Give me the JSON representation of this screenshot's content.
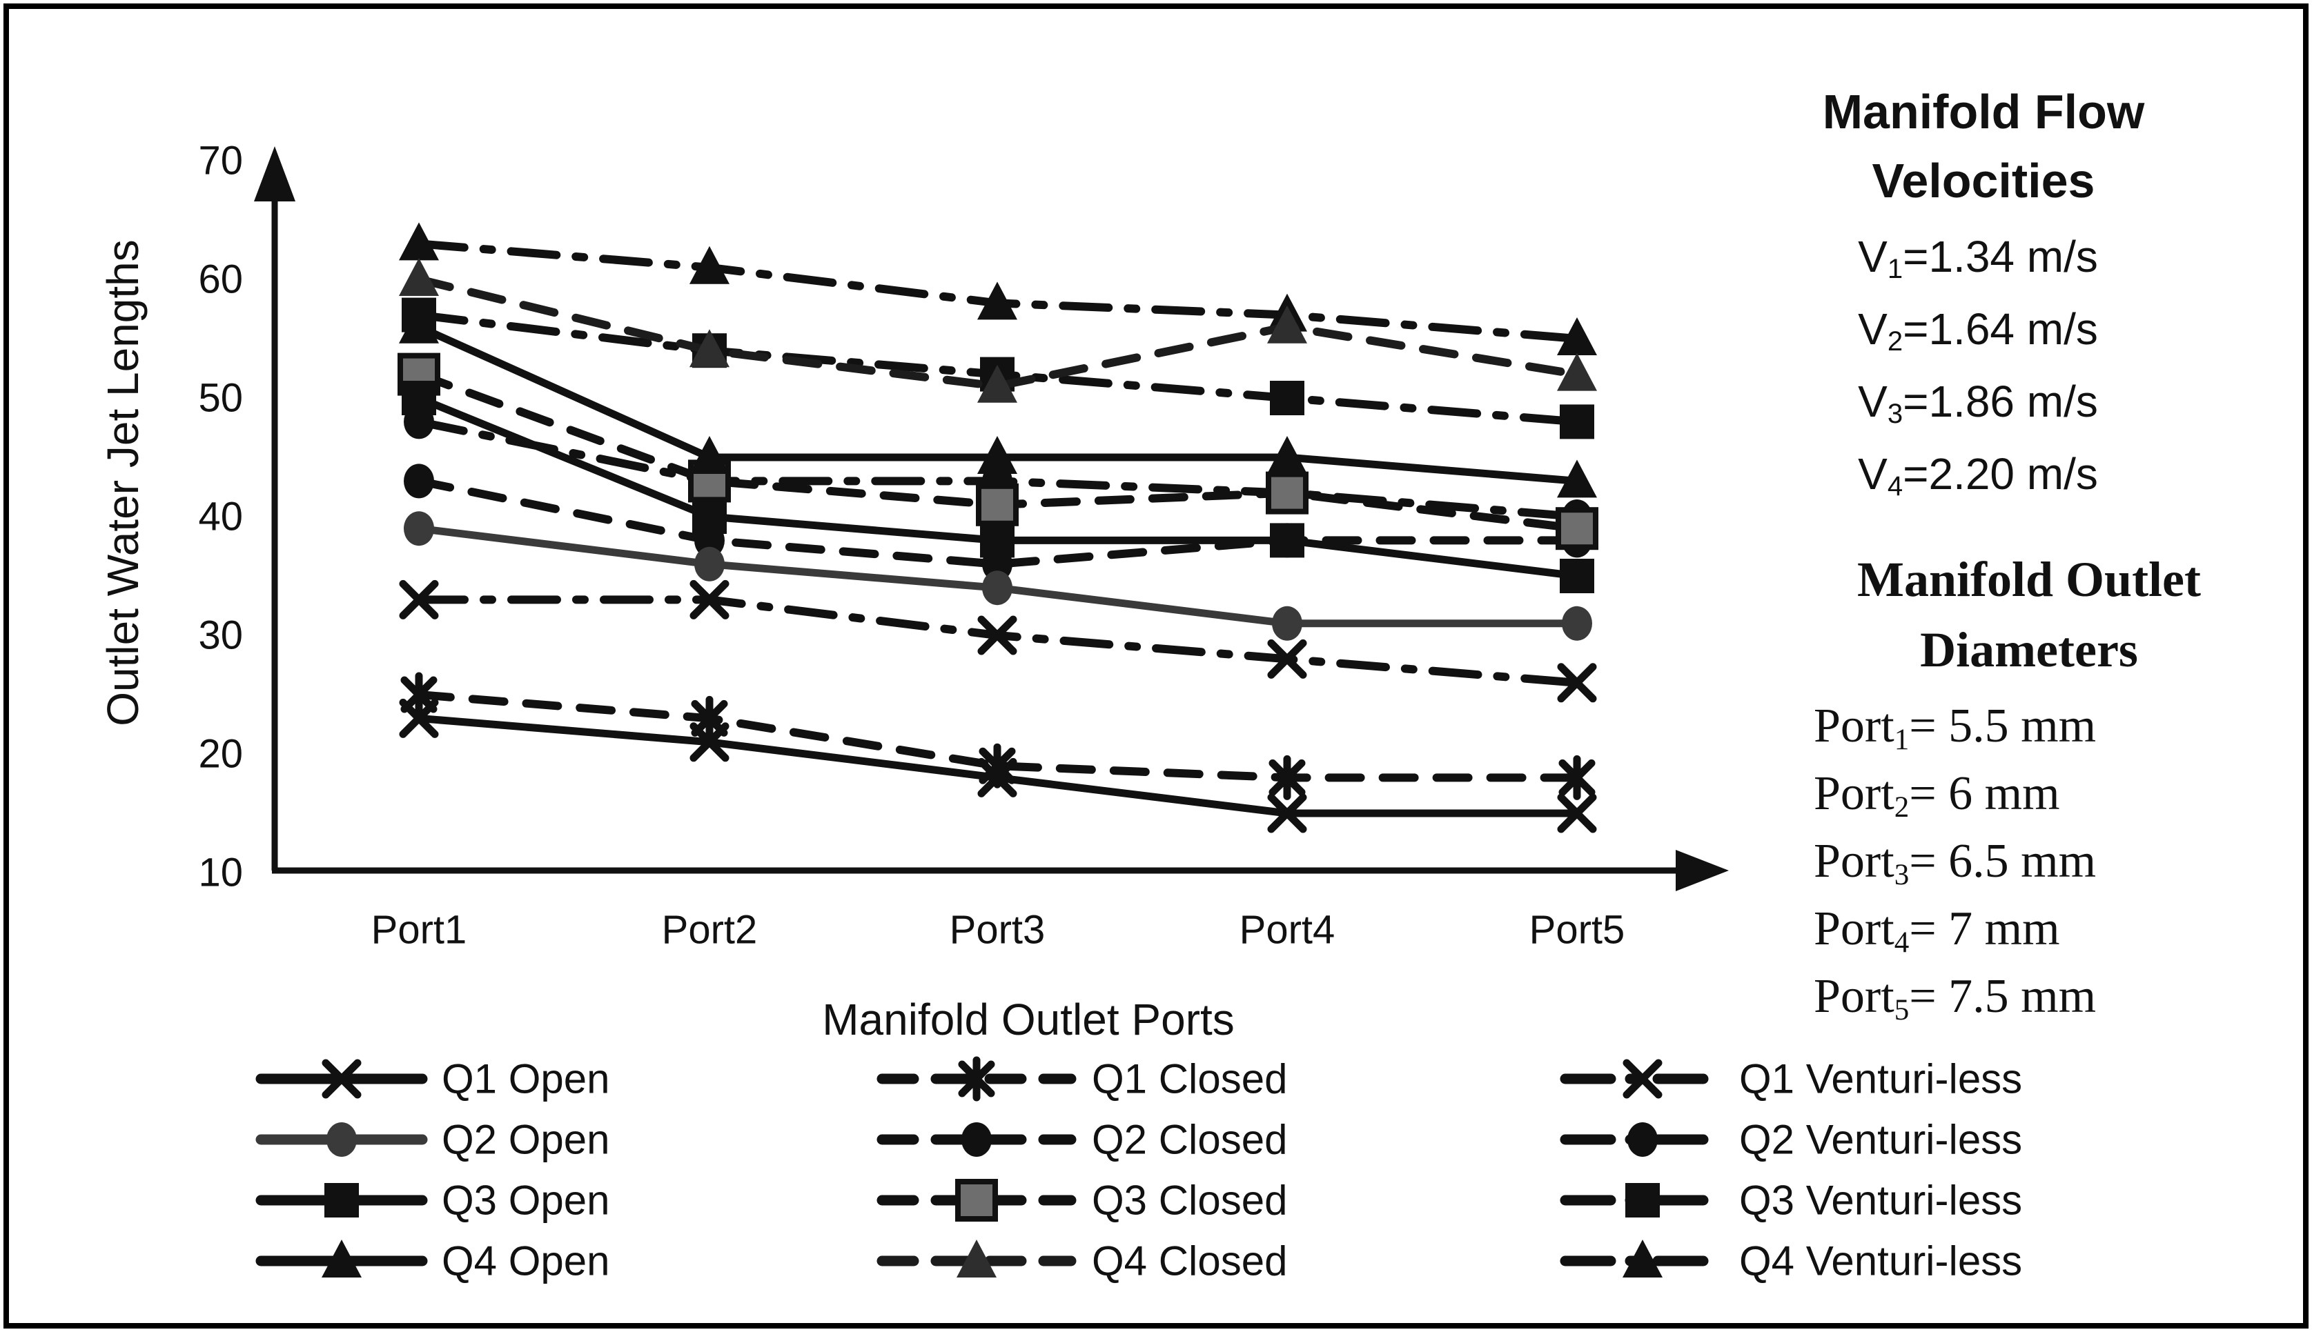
{
  "colors": {
    "ink": "#111111",
    "dark_gray": "#2e2e2e",
    "mid_gray": "#6e6e6e",
    "q2_open": "#3a3a3a",
    "background": "#ffffff",
    "frame": "#000000"
  },
  "chart_data": {
    "type": "line",
    "title": "",
    "xlabel": "Manifold Outlet Ports",
    "ylabel": "Outlet Water Jet Lengths",
    "categories": [
      "Port1",
      "Port2",
      "Port3",
      "Port4",
      "Port5"
    ],
    "y_ticks": [
      70,
      60,
      50,
      40,
      30,
      20,
      10
    ],
    "ylim": [
      10,
      70
    ],
    "grid": false,
    "legend_position": "bottom",
    "series": [
      {
        "name": "Q1 Venturi-less",
        "group": "Venturi-less",
        "line": "dashdot",
        "marker": "x",
        "color": "#111111",
        "values": [
          33,
          33,
          30,
          28,
          26
        ]
      },
      {
        "name": "Q2 Venturi-less",
        "group": "Venturi-less",
        "line": "dashdot",
        "marker": "circle",
        "color": "#111111",
        "values": [
          48,
          43,
          43,
          42,
          40
        ]
      },
      {
        "name": "Q3 Venturi-less",
        "group": "Venturi-less",
        "line": "dashdot",
        "marker": "square",
        "color": "#111111",
        "values": [
          57,
          54,
          52,
          50,
          48
        ]
      },
      {
        "name": "Q4 Venturi-less",
        "group": "Venturi-less",
        "line": "dashdot",
        "marker": "triangle",
        "color": "#111111",
        "values": [
          63,
          61,
          58,
          57,
          55
        ]
      },
      {
        "name": "Q1 Closed",
        "group": "Closed",
        "line": "dashed",
        "marker": "asterisk",
        "color": "#111111",
        "values": [
          25,
          23,
          19,
          18,
          18
        ]
      },
      {
        "name": "Q2 Closed",
        "group": "Closed",
        "line": "dashed",
        "marker": "circle",
        "color": "#111111",
        "values": [
          43,
          38,
          36,
          38,
          38
        ]
      },
      {
        "name": "Q3 Closed",
        "group": "Closed",
        "line": "dashed",
        "marker": "square-gray",
        "color": "#111111",
        "marker_fill": "#6e6e6e",
        "values": [
          52,
          43,
          41,
          42,
          39
        ]
      },
      {
        "name": "Q4 Closed",
        "group": "Closed",
        "line": "dashed",
        "marker": "triangle-gray",
        "color": "#1c1c1c",
        "marker_fill": "#2e2e2e",
        "values": [
          60,
          54,
          51,
          56,
          52
        ]
      },
      {
        "name": "Q1 Open",
        "group": "Open",
        "line": "solid",
        "marker": "x",
        "color": "#111111",
        "values": [
          23,
          21,
          18,
          15,
          15
        ]
      },
      {
        "name": "Q2 Open",
        "group": "Open",
        "line": "solid",
        "marker": "circle",
        "color": "#3a3a3a",
        "values": [
          39,
          36,
          34,
          31,
          31
        ]
      },
      {
        "name": "Q3 Open",
        "group": "Open",
        "line": "solid",
        "marker": "square",
        "color": "#111111",
        "values": [
          50,
          40,
          38,
          38,
          35
        ]
      },
      {
        "name": "Q4 Open",
        "group": "Open",
        "line": "solid",
        "marker": "triangle",
        "color": "#111111",
        "values": [
          56,
          45,
          45,
          45,
          43
        ]
      }
    ],
    "legend_columns": [
      [
        "Q1 Open",
        "Q2 Open",
        "Q3 Open",
        "Q4 Open"
      ],
      [
        "Q1 Closed",
        "Q2 Closed",
        "Q3 Closed",
        "Q4 Closed"
      ],
      [
        "Q1 Venturi-less",
        "Q2 Venturi-less",
        "Q3 Venturi-less",
        "Q4 Venturi-less"
      ]
    ]
  },
  "side_panel": {
    "flow_velocities": {
      "title_lines": [
        "Manifold Flow",
        "Velocities"
      ],
      "items": [
        {
          "pre": "V",
          "sub": "1",
          "post": "=1.34 m/s"
        },
        {
          "pre": "V",
          "sub": "2",
          "post": "=1.64 m/s"
        },
        {
          "pre": "V",
          "sub": "3",
          "post": "=1.86 m/s"
        },
        {
          "pre": "V",
          "sub": "4",
          "post": "=2.20 m/s"
        }
      ]
    },
    "outlet_diameters": {
      "title_lines": [
        "Manifold Outlet",
        "Diameters"
      ],
      "items": [
        {
          "pre": "Port",
          "sub": "1",
          "post": "= 5.5 mm"
        },
        {
          "pre": "Port",
          "sub": "2",
          "post": "= 6 mm"
        },
        {
          "pre": "Port",
          "sub": "3",
          "post": "= 6.5 mm"
        },
        {
          "pre": "Port",
          "sub": "4",
          "post": "= 7 mm"
        },
        {
          "pre": "Port",
          "sub": "5",
          "post": "= 7.5 mm"
        }
      ]
    }
  }
}
